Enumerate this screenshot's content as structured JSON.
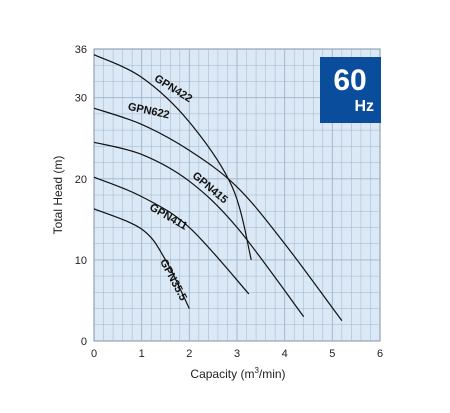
{
  "chart_data": {
    "type": "line",
    "xlabel_main": "Capacity (m",
    "xlabel_sup": "3",
    "xlabel_end": "/min)",
    "ylabel": "Total Head (m)",
    "xlim": [
      0,
      6
    ],
    "ylim": [
      0,
      36
    ],
    "x_ticks": [
      "0",
      "1",
      "2",
      "3",
      "4",
      "5",
      "6"
    ],
    "y_ticks": [
      "0",
      "10",
      "20",
      "30",
      "36"
    ],
    "grid": true,
    "badge": {
      "number": "60",
      "unit": "Hz",
      "color": "#0a4d9c"
    },
    "colors": {
      "grid_fill": "#dbe9f6",
      "grid_line": "#9fb3c8",
      "curve": "#111111"
    },
    "series": [
      {
        "name": "GPN422",
        "points": [
          [
            0,
            35.3
          ],
          [
            1,
            32.5
          ],
          [
            2,
            27
          ],
          [
            2.9,
            19
          ],
          [
            3.3,
            10
          ]
        ]
      },
      {
        "name": "GPN622",
        "points": [
          [
            0,
            28.7
          ],
          [
            1,
            26.7
          ],
          [
            2,
            23.5
          ],
          [
            3,
            19
          ],
          [
            4,
            12
          ],
          [
            5.2,
            2.5
          ]
        ]
      },
      {
        "name": "GPN415",
        "points": [
          [
            0,
            24.5
          ],
          [
            1,
            23
          ],
          [
            2,
            19.7
          ],
          [
            3,
            14
          ],
          [
            4.4,
            3
          ]
        ]
      },
      {
        "name": "GPN411",
        "points": [
          [
            0,
            20.2
          ],
          [
            1,
            17.8
          ],
          [
            2,
            14
          ],
          [
            3.25,
            5.8
          ]
        ]
      },
      {
        "name": "GPN35.5",
        "points": [
          [
            0,
            16.3
          ],
          [
            1,
            13.8
          ],
          [
            1.5,
            10
          ],
          [
            2,
            4
          ]
        ]
      }
    ],
    "label_rotations": [
      32,
      12,
      40,
      30,
      62
    ]
  }
}
